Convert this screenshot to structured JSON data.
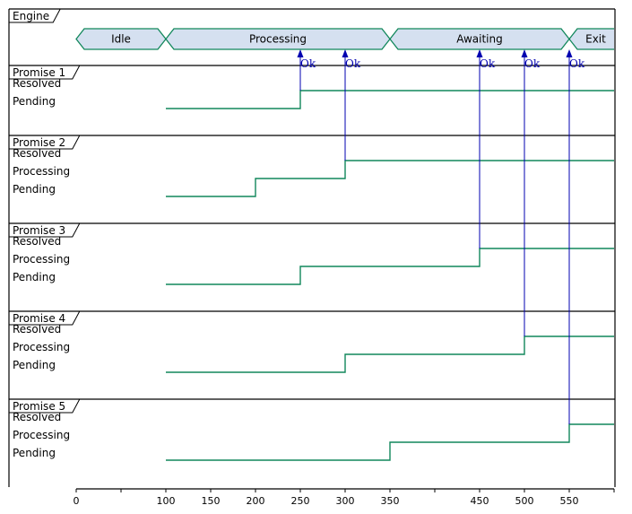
{
  "engine": {
    "title": "Engine",
    "phases": [
      {
        "label": "Idle",
        "start": 0,
        "end": 100
      },
      {
        "label": "Processing",
        "start": 100,
        "end": 350
      },
      {
        "label": "Awaiting",
        "start": 350,
        "end": 550
      },
      {
        "label": "Exit",
        "start": 550,
        "end": 600
      }
    ]
  },
  "promises": [
    {
      "title": "Promise 1",
      "states": [
        "Resolved",
        "Pending"
      ],
      "timeline": [
        [
          "Pending",
          100
        ],
        [
          "Resolved",
          250
        ]
      ]
    },
    {
      "title": "Promise 2",
      "states": [
        "Resolved",
        "Processing",
        "Pending"
      ],
      "timeline": [
        [
          "Pending",
          100
        ],
        [
          "Processing",
          200
        ],
        [
          "Resolved",
          300
        ]
      ]
    },
    {
      "title": "Promise 3",
      "states": [
        "Resolved",
        "Processing",
        "Pending"
      ],
      "timeline": [
        [
          "Pending",
          100
        ],
        [
          "Processing",
          250
        ],
        [
          "Resolved",
          450
        ]
      ]
    },
    {
      "title": "Promise 4",
      "states": [
        "Resolved",
        "Processing",
        "Pending"
      ],
      "timeline": [
        [
          "Pending",
          100
        ],
        [
          "Processing",
          300
        ],
        [
          "Resolved",
          500
        ]
      ]
    },
    {
      "title": "Promise 5",
      "states": [
        "Resolved",
        "Processing",
        "Pending"
      ],
      "timeline": [
        [
          "Pending",
          100
        ],
        [
          "Processing",
          350
        ],
        [
          "Resolved",
          550
        ]
      ]
    }
  ],
  "messages": [
    {
      "label": "Ok",
      "time": 250,
      "from_promise": 1
    },
    {
      "label": "Ok",
      "time": 300,
      "from_promise": 2
    },
    {
      "label": "Ok",
      "time": 450,
      "from_promise": 3
    },
    {
      "label": "Ok",
      "time": 500,
      "from_promise": 4
    },
    {
      "label": "Ok",
      "time": 550,
      "from_promise": 5
    }
  ],
  "axis": {
    "min": 0,
    "max": 600,
    "major_ticks": [
      0,
      100,
      150,
      200,
      250,
      300,
      350,
      450,
      500,
      550
    ],
    "minor_ticks": [
      50,
      400,
      600
    ]
  },
  "colors": {
    "phase_fill": "#d5e0f0",
    "signal": "#11875b",
    "message": "#0000b0",
    "frame": "#000000"
  }
}
